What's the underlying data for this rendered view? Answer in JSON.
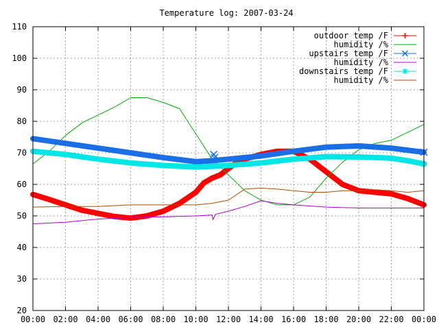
{
  "chart_data": {
    "type": "line",
    "title": "Temperature log: 2007-03-24",
    "xlabel": "",
    "ylabel": "",
    "xlim": [
      0,
      24
    ],
    "ylim": [
      20,
      110
    ],
    "grid": true,
    "legend_position": "top-right",
    "x_tick_labels": [
      "00:00",
      "02:00",
      "04:00",
      "06:00",
      "08:00",
      "10:00",
      "12:00",
      "14:00",
      "16:00",
      "18:00",
      "20:00",
      "22:00",
      "00:00"
    ],
    "y_ticks": [
      20,
      30,
      40,
      50,
      60,
      70,
      80,
      90,
      100,
      110
    ],
    "series": [
      {
        "name": "outdoor temp /F",
        "color": "#ff0000",
        "marker": "plus",
        "points": [
          [
            0,
            56.8
          ],
          [
            1,
            55.2
          ],
          [
            2,
            53.5
          ],
          [
            3,
            51.8
          ],
          [
            4,
            50.8
          ],
          [
            5,
            49.8
          ],
          [
            6,
            49.3
          ],
          [
            7,
            50.0
          ],
          [
            8,
            51.5
          ],
          [
            9,
            54.0
          ],
          [
            10,
            57.5
          ],
          [
            10.5,
            60.5
          ],
          [
            11,
            62.0
          ],
          [
            11.5,
            63.0
          ],
          [
            12,
            65.0
          ],
          [
            12.5,
            67.0
          ],
          [
            13,
            68.0
          ],
          [
            14,
            69.5
          ],
          [
            15,
            70.5
          ],
          [
            16,
            70.5
          ],
          [
            17,
            68.0
          ],
          [
            18,
            64.0
          ],
          [
            19,
            60.0
          ],
          [
            20,
            58.0
          ],
          [
            21,
            57.5
          ],
          [
            22,
            57.0
          ],
          [
            23,
            55.5
          ],
          [
            24,
            53.5
          ]
        ]
      },
      {
        "name": "humidity /%",
        "color": "#00aa00",
        "marker": "none",
        "points": [
          [
            0,
            66.5
          ],
          [
            1,
            70.5
          ],
          [
            2,
            75.5
          ],
          [
            3,
            79.5
          ],
          [
            4,
            82.0
          ],
          [
            5,
            84.5
          ],
          [
            6,
            87.5
          ],
          [
            7,
            87.5
          ],
          [
            8,
            86.0
          ],
          [
            9,
            84.0
          ],
          [
            10,
            76.0
          ],
          [
            11,
            68.0
          ],
          [
            12,
            63.0
          ],
          [
            13,
            58.0
          ],
          [
            14,
            55.0
          ],
          [
            15,
            53.5
          ],
          [
            16,
            53.5
          ],
          [
            17,
            56.0
          ],
          [
            18,
            62.0
          ],
          [
            19,
            67.0
          ],
          [
            20,
            71.0
          ],
          [
            21,
            73.0
          ],
          [
            22,
            74.0
          ],
          [
            23,
            76.5
          ],
          [
            24,
            79.0
          ]
        ]
      },
      {
        "name": "upstairs temp /F",
        "color": "#1a6ee6",
        "marker": "cross",
        "points": [
          [
            0,
            74.5
          ],
          [
            2,
            73.0
          ],
          [
            4,
            71.5
          ],
          [
            6,
            70.0
          ],
          [
            8,
            68.5
          ],
          [
            10,
            67.2
          ],
          [
            11,
            67.5
          ],
          [
            12,
            68.0
          ],
          [
            13,
            68.5
          ],
          [
            14,
            69.0
          ],
          [
            16,
            70.5
          ],
          [
            18,
            71.8
          ],
          [
            20,
            72.2
          ],
          [
            22,
            71.5
          ],
          [
            24,
            70.2
          ]
        ]
      },
      {
        "name": "humidity /%",
        "color": "#aa00cc",
        "marker": "none",
        "points": [
          [
            0,
            47.5
          ],
          [
            2,
            48.0
          ],
          [
            4,
            49.0
          ],
          [
            6,
            49.5
          ],
          [
            8,
            49.7
          ],
          [
            10,
            50.0
          ],
          [
            11,
            50.3
          ],
          [
            11.05,
            48.8
          ],
          [
            11.2,
            50.5
          ],
          [
            12,
            51.5
          ],
          [
            13,
            53.0
          ],
          [
            14,
            54.8
          ],
          [
            15,
            54.0
          ],
          [
            16,
            53.5
          ],
          [
            18,
            52.8
          ],
          [
            20,
            52.5
          ],
          [
            22,
            52.5
          ],
          [
            24,
            52.5
          ]
        ]
      },
      {
        "name": "downstairs temp /F",
        "color": "#00e5e5",
        "marker": "star",
        "points": [
          [
            0,
            70.5
          ],
          [
            2,
            69.5
          ],
          [
            4,
            68.0
          ],
          [
            6,
            66.8
          ],
          [
            8,
            66.0
          ],
          [
            10,
            65.5
          ],
          [
            11,
            65.7
          ],
          [
            12,
            66.0
          ],
          [
            14,
            66.8
          ],
          [
            16,
            68.0
          ],
          [
            18,
            68.8
          ],
          [
            20,
            68.7
          ],
          [
            22,
            68.3
          ],
          [
            23,
            67.5
          ],
          [
            24,
            66.5
          ]
        ]
      },
      {
        "name": "humidity /%",
        "color": "#b04a00",
        "marker": "none",
        "points": [
          [
            0,
            52.8
          ],
          [
            2,
            53.0
          ],
          [
            4,
            53.0
          ],
          [
            6,
            53.5
          ],
          [
            8,
            53.5
          ],
          [
            10,
            53.5
          ],
          [
            11,
            54.0
          ],
          [
            12,
            55.0
          ],
          [
            13,
            58.5
          ],
          [
            14,
            58.8
          ],
          [
            15,
            58.5
          ],
          [
            16,
            58.0
          ],
          [
            17,
            57.5
          ],
          [
            18,
            57.5
          ],
          [
            19,
            58.0
          ],
          [
            20,
            58.0
          ],
          [
            21,
            58.3
          ],
          [
            22,
            58.0
          ],
          [
            23,
            57.5
          ],
          [
            24,
            58.0
          ]
        ]
      }
    ]
  }
}
